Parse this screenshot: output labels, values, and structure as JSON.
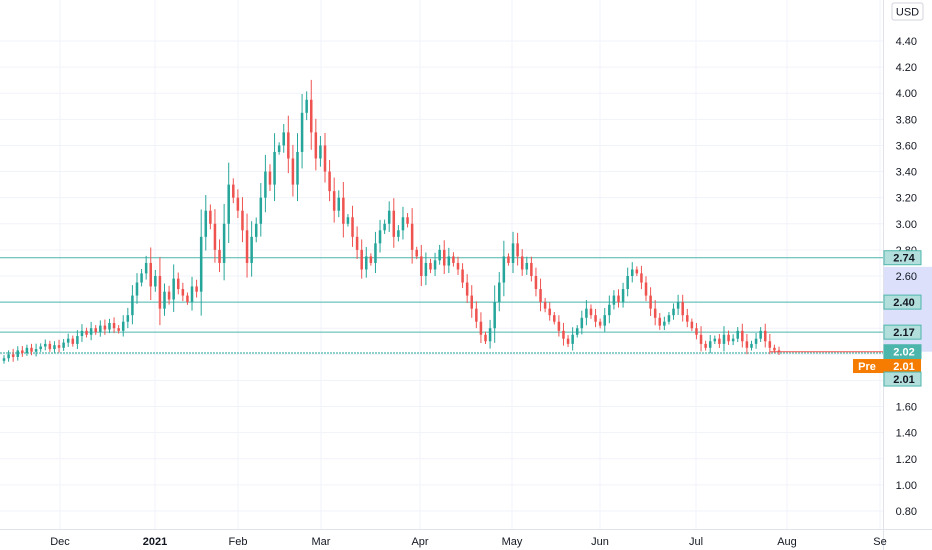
{
  "currency_button": "USD",
  "colors": {
    "up": "#26a69a",
    "down": "#ef5350",
    "hline": "#4db6ac",
    "grid": "#f0f3fa",
    "pre": "#f57c00",
    "axis_text": "#131722",
    "band": "#dce0fb"
  },
  "chart_data": {
    "type": "candlestick",
    "y_ticks": [
      "4.40",
      "4.20",
      "4.00",
      "3.80",
      "3.60",
      "3.40",
      "3.20",
      "3.00",
      "2.80",
      "2.60",
      "2.40",
      "2.20",
      "2.00",
      "1.80",
      "1.60",
      "1.40",
      "1.20",
      "1.00",
      "0.80"
    ],
    "x_ticks": [
      {
        "label": "Dec",
        "bold": false
      },
      {
        "label": "2021",
        "bold": true
      },
      {
        "label": "Feb",
        "bold": false
      },
      {
        "label": "Mar",
        "bold": false
      },
      {
        "label": "Apr",
        "bold": false
      },
      {
        "label": "May",
        "bold": false
      },
      {
        "label": "Jun",
        "bold": false
      },
      {
        "label": "Jul",
        "bold": false
      },
      {
        "label": "Aug",
        "bold": false
      },
      {
        "label": "Se",
        "bold": false
      }
    ],
    "ylim": [
      0.66,
      4.52
    ],
    "horizontal_levels": [
      {
        "value": 2.74,
        "label": "2.74"
      },
      {
        "value": 2.4,
        "label": "2.40"
      },
      {
        "value": 2.17,
        "label": "2.17"
      },
      {
        "value": 2.01,
        "label": "2.01"
      }
    ],
    "last_price": {
      "value": 2.02,
      "label": "2.02"
    },
    "pre_market": {
      "tag": "Pre",
      "value": 2.01,
      "label": "2.01"
    },
    "closes": [
      1.97,
      2.0,
      1.98,
      2.03,
      2.01,
      2.05,
      2.02,
      2.04,
      2.06,
      2.08,
      2.04,
      2.07,
      2.05,
      2.09,
      2.12,
      2.08,
      2.14,
      2.18,
      2.15,
      2.2,
      2.17,
      2.22,
      2.19,
      2.24,
      2.2,
      2.18,
      2.25,
      2.3,
      2.45,
      2.55,
      2.62,
      2.7,
      2.52,
      2.6,
      2.35,
      2.48,
      2.42,
      2.58,
      2.5,
      2.45,
      2.4,
      2.52,
      2.48,
      2.9,
      3.1,
      3.0,
      2.8,
      2.7,
      3.0,
      3.3,
      3.2,
      3.1,
      2.95,
      2.7,
      2.9,
      3.0,
      3.2,
      3.4,
      3.3,
      3.55,
      3.6,
      3.7,
      3.5,
      3.3,
      3.55,
      3.85,
      3.95,
      3.7,
      3.5,
      3.6,
      3.4,
      3.25,
      3.1,
      3.2,
      3.0,
      3.05,
      2.9,
      2.8,
      2.65,
      2.75,
      2.7,
      2.85,
      2.95,
      3.0,
      3.1,
      2.9,
      2.95,
      3.05,
      3.0,
      2.8,
      2.75,
      2.6,
      2.7,
      2.65,
      2.72,
      2.8,
      2.68,
      2.75,
      2.7,
      2.65,
      2.55,
      2.45,
      2.35,
      2.25,
      2.15,
      2.1,
      2.2,
      2.4,
      2.55,
      2.75,
      2.7,
      2.85,
      2.75,
      2.65,
      2.7,
      2.6,
      2.5,
      2.4,
      2.35,
      2.3,
      2.25,
      2.18,
      2.12,
      2.08,
      2.15,
      2.2,
      2.28,
      2.35,
      2.3,
      2.25,
      2.22,
      2.3,
      2.38,
      2.45,
      2.4,
      2.5,
      2.6,
      2.65,
      2.62,
      2.55,
      2.45,
      2.35,
      2.28,
      2.22,
      2.25,
      2.3,
      2.35,
      2.4,
      2.3,
      2.25,
      2.2,
      2.15,
      2.08,
      2.05,
      2.1,
      2.12,
      2.08,
      2.15,
      2.1,
      2.12,
      2.18,
      2.1,
      2.05,
      2.08,
      2.12,
      2.18,
      2.1,
      2.05,
      2.03,
      2.02
    ]
  }
}
